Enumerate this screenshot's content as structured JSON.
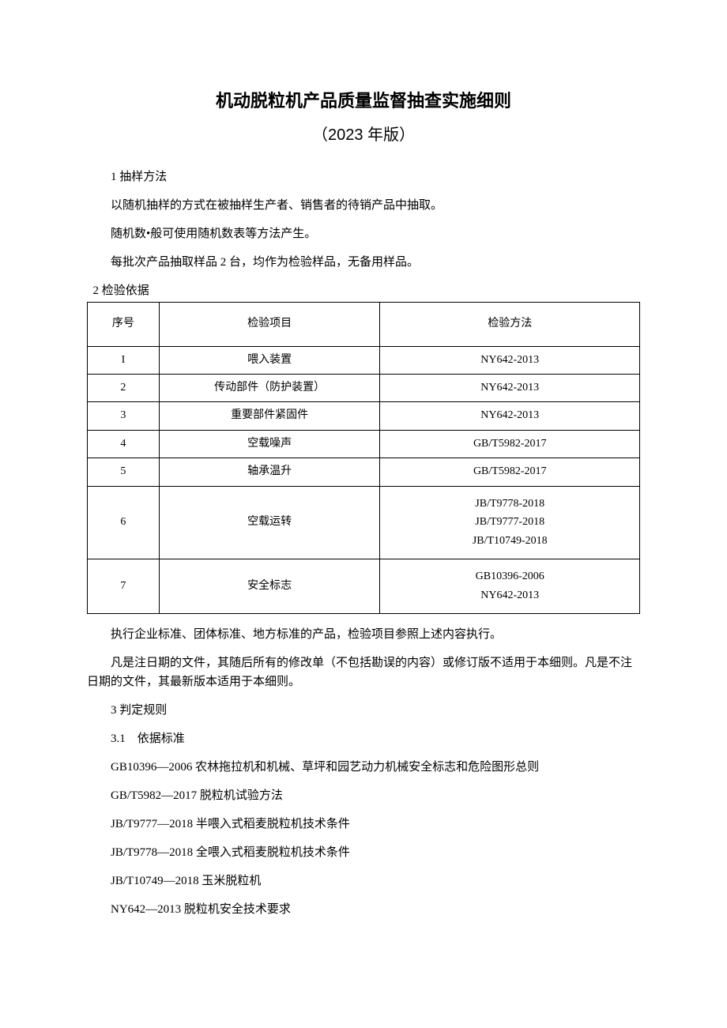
{
  "title": "机动脱粒机产品质量监督抽查实施细则",
  "subtitle": "（2023 年版）",
  "s1_heading": "1 抽样方法",
  "s1_p1": "以随机抽样的方式在被抽样生产者、销售者的待销产品中抽取。",
  "s1_p2": "随机数•般可使用随机数表等方法产生。",
  "s1_p3": "每批次产品抽取样品 2 台，均作为检验样品，无备用样品。",
  "s2_heading": "2 检验依据",
  "table": {
    "columns": [
      "序号",
      "检验项目",
      "检验方法"
    ],
    "rows": [
      {
        "seq": "I",
        "item": "喂入装置",
        "method": "NY642-2013"
      },
      {
        "seq": "2",
        "item": "传动部件（防护装置）",
        "method": "NY642-2013"
      },
      {
        "seq": "3",
        "item": "重要部件紧固件",
        "method": "NY642-2013"
      },
      {
        "seq": "4",
        "item": "空载噪声",
        "method": "GB/T5982-2017"
      },
      {
        "seq": "5",
        "item": "轴承温升",
        "method": "GB/T5982-2017"
      },
      {
        "seq": "6",
        "item": "空载运转",
        "method": "JB/T9778-2018\nJB/T9777-2018\nJB/T10749-2018"
      },
      {
        "seq": "7",
        "item": "安全标志",
        "method": "GB10396-2006\nNY642-2013"
      }
    ]
  },
  "s2_p1": "执行企业标准、团体标准、地方标准的产品，检验项目参照上述内容执行。",
  "s2_p2": "凡是注日期的文件，其随后所有的修改单（不包括勘误的内容）或修订版不适用于本细则。凡是不注日期的文件，其最新版本适用于本细则。",
  "s3_heading": "3 判定规则",
  "s3_1_heading": "3.1　依据标准",
  "stds": [
    "GB10396—2006 农林拖拉机和机械、草坪和园艺动力机械安全标志和危险图形总则",
    "GB/T5982—2017 脱粒机试验方法",
    "JB/T9777—2018 半喂入式稻麦脱粒机技术条件",
    "JB/T9778—2018 全喂入式稻麦脱粒机技术条件",
    "JB/T10749—2018 玉米脱粒机",
    "NY642—2013 脱粒机安全技术要求"
  ]
}
